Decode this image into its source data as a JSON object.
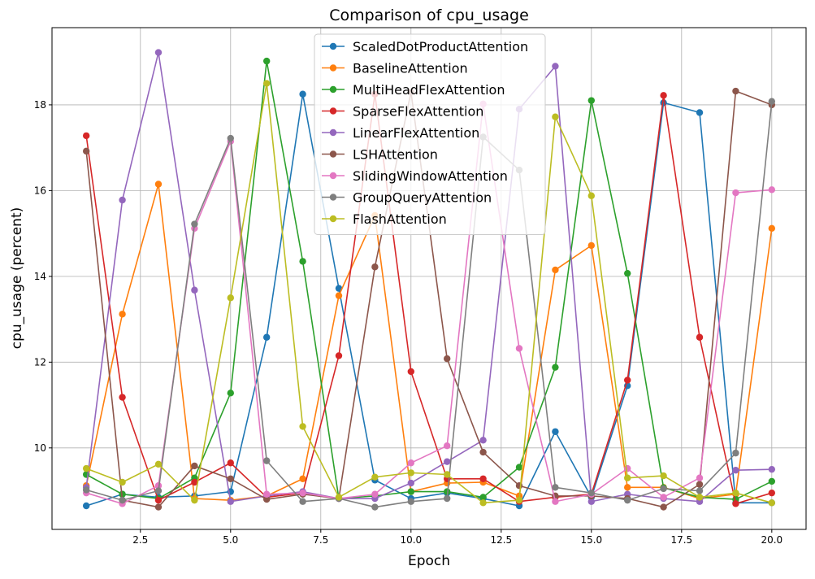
{
  "chart_data": {
    "type": "line",
    "title": "Comparison of cpu_usage",
    "xlabel": "Epoch",
    "ylabel": "cpu_usage (percent)",
    "xlim": [
      0.05,
      20.95
    ],
    "ylim": [
      8.1,
      19.8
    ],
    "xticks": [
      2.5,
      5.0,
      7.5,
      10.0,
      12.5,
      15.0,
      17.5,
      20.0
    ],
    "xtick_labels": [
      "2.5",
      "5.0",
      "7.5",
      "10.0",
      "12.5",
      "15.0",
      "17.5",
      "20.0"
    ],
    "yticks": [
      10,
      12,
      14,
      16,
      18
    ],
    "ytick_labels": [
      "10",
      "12",
      "14",
      "16",
      "18"
    ],
    "grid": true,
    "legend_position": "top-center",
    "x": [
      1,
      2,
      3,
      4,
      5,
      6,
      7,
      8,
      9,
      10,
      11,
      12,
      13,
      14,
      15,
      16,
      17,
      18,
      19,
      20
    ],
    "series": [
      {
        "name": "ScaledDotProductAttention",
        "color": "#1f77b4",
        "values": [
          8.65,
          8.92,
          8.85,
          8.88,
          8.98,
          12.58,
          18.25,
          13.72,
          9.25,
          8.82,
          8.95,
          8.82,
          8.65,
          10.38,
          8.85,
          11.45,
          18.05,
          17.82,
          8.72,
          8.72
        ]
      },
      {
        "name": "BaselineAttention",
        "color": "#ff7f0e",
        "values": [
          9.12,
          13.12,
          16.15,
          8.82,
          8.78,
          8.88,
          9.28,
          13.55,
          15.42,
          8.98,
          9.18,
          9.2,
          8.88,
          14.15,
          14.72,
          9.08,
          9.08,
          8.82,
          8.92,
          15.12
        ]
      },
      {
        "name": "MultiHeadFlexAttention",
        "color": "#2ca02c",
        "values": [
          9.38,
          8.92,
          8.82,
          9.3,
          11.28,
          19.02,
          14.35,
          8.82,
          8.88,
          8.98,
          8.98,
          8.85,
          9.55,
          11.88,
          18.1,
          14.07,
          9.07,
          8.85,
          8.8,
          9.22
        ]
      },
      {
        "name": "SparseFlexAttention",
        "color": "#d62728",
        "values": [
          17.28,
          11.18,
          8.78,
          9.2,
          9.65,
          8.85,
          8.95,
          12.15,
          18.25,
          11.78,
          9.28,
          9.28,
          8.75,
          8.85,
          8.92,
          11.58,
          18.22,
          12.58,
          8.7,
          8.95
        ]
      },
      {
        "name": "LinearFlexAttention",
        "color": "#9467bd",
        "values": [
          9.08,
          15.78,
          19.22,
          13.68,
          8.75,
          8.88,
          8.98,
          8.82,
          8.82,
          9.18,
          9.68,
          10.18,
          17.9,
          18.9,
          8.75,
          8.92,
          8.82,
          8.75,
          9.48,
          9.5
        ]
      },
      {
        "name": "LSHAttention",
        "color": "#8c564b",
        "values": [
          16.92,
          8.78,
          8.62,
          9.58,
          9.28,
          8.8,
          8.92,
          8.82,
          14.22,
          18.3,
          12.08,
          9.9,
          9.12,
          8.88,
          8.88,
          8.82,
          8.62,
          9.15,
          18.32,
          18.0
        ]
      },
      {
        "name": "SlidingWindowAttention",
        "color": "#e377c2",
        "values": [
          8.95,
          8.7,
          9.12,
          15.12,
          17.15,
          8.92,
          8.95,
          8.82,
          8.92,
          9.65,
          10.05,
          18.02,
          12.32,
          8.75,
          8.92,
          9.52,
          8.85,
          9.3,
          15.95,
          16.02
        ]
      },
      {
        "name": "GroupQueryAttention",
        "color": "#7f7f7f",
        "values": [
          9.02,
          8.78,
          9.0,
          15.22,
          17.22,
          9.7,
          8.75,
          8.82,
          8.62,
          8.75,
          8.82,
          17.25,
          16.48,
          9.08,
          8.95,
          8.78,
          9.05,
          9.0,
          9.88,
          18.08
        ]
      },
      {
        "name": "FlashAttention",
        "color": "#bcbd22",
        "values": [
          9.52,
          9.2,
          9.62,
          8.78,
          13.5,
          18.5,
          10.5,
          8.85,
          9.32,
          9.42,
          9.38,
          8.72,
          8.78,
          17.72,
          15.88,
          9.3,
          9.35,
          8.85,
          8.95,
          8.72
        ]
      }
    ]
  }
}
